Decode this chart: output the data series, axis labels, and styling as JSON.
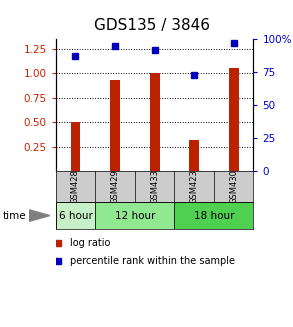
{
  "title": "GDS135 / 3846",
  "samples": [
    "GSM428",
    "GSM429",
    "GSM433",
    "GSM423",
    "GSM430"
  ],
  "log_ratio": [
    0.5,
    0.93,
    1.0,
    0.32,
    1.05
  ],
  "percentile_rank_pct": [
    87,
    95,
    92,
    73,
    97
  ],
  "groups": [
    {
      "label": "6 hour",
      "samples": [
        "GSM428"
      ],
      "color": "#c8f0c8"
    },
    {
      "label": "12 hour",
      "samples": [
        "GSM429",
        "GSM433"
      ],
      "color": "#90e890"
    },
    {
      "label": "18 hour",
      "samples": [
        "GSM423",
        "GSM430"
      ],
      "color": "#50d050"
    }
  ],
  "ylim_left": [
    0.0,
    1.35
  ],
  "ylim_right": [
    0,
    100
  ],
  "yticks_left": [
    0.25,
    0.5,
    0.75,
    1.0,
    1.25
  ],
  "yticks_right": [
    0,
    25,
    50,
    75,
    100
  ],
  "bar_color": "#bb2200",
  "dot_color": "#0000bb",
  "background_color": "#ffffff",
  "title_fontsize": 11,
  "axis_label_color_left": "#cc2200",
  "axis_label_color_right": "#0000cc",
  "sample_panel_color": "#cccccc"
}
